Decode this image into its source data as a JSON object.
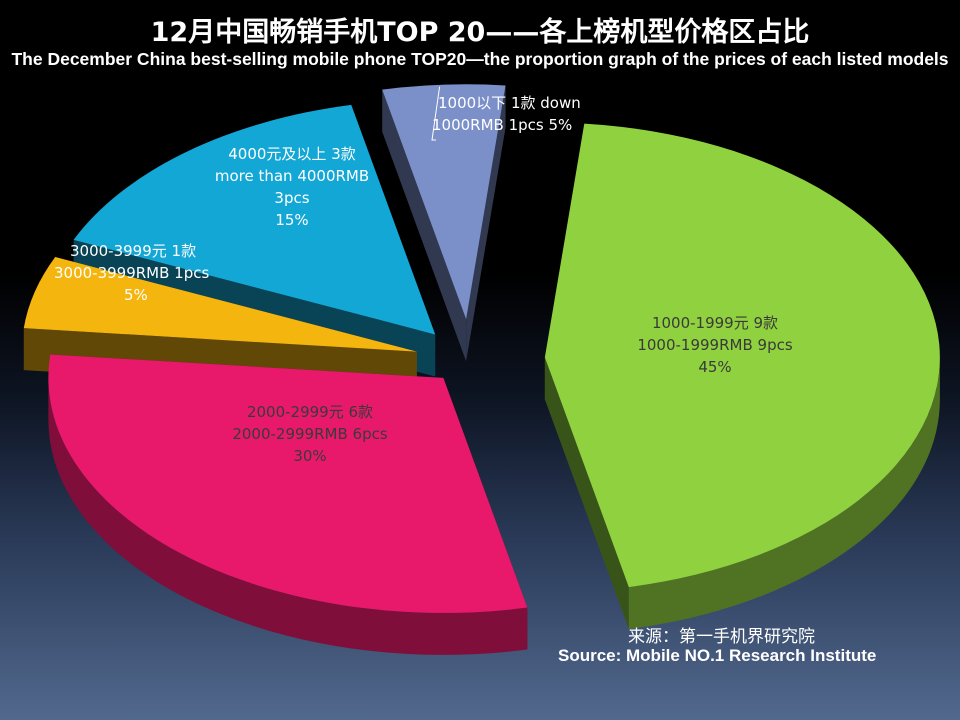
{
  "chart_data": {
    "type": "pie",
    "title": "12月中国畅销手机TOP 20——各上榜机型价格区占比",
    "subtitle": "The  December China best-selling mobile phone TOP20—the proportion graph of the prices of each listed models",
    "slices": [
      {
        "value": 45,
        "color": "#8fd13f",
        "label_lines": [
          "1000-1999元 9款",
          "1000-1999RMB 9pcs",
          "45%"
        ]
      },
      {
        "value": 30,
        "color": "#e8196b",
        "label_lines": [
          "2000-2999元 6款",
          "2000-2999RMB 6pcs",
          "30%"
        ]
      },
      {
        "value": 5,
        "color": "#f5b50f",
        "label_lines": [
          "3000-3999元 1款",
          "3000-3999RMB 1pcs",
          "5%"
        ]
      },
      {
        "value": 15,
        "color": "#13a7d6",
        "label_lines": [
          "4000元及以上 3款",
          "more than 4000RMB",
          "3pcs",
          "15%"
        ]
      },
      {
        "value": 5,
        "color": "#7b8fc9",
        "label_lines": [
          "1000以下 1款  down",
          "1000RMB 1pcs     5%"
        ]
      }
    ]
  },
  "source": {
    "cn": "来源：第一手机界研究院",
    "en": "Source: Mobile NO.1 Research Institute"
  }
}
